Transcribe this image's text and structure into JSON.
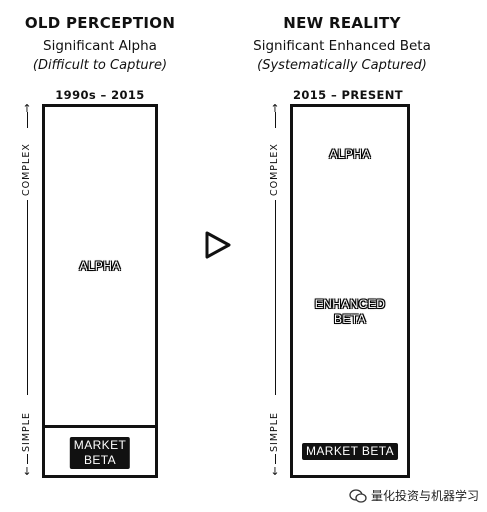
{
  "left": {
    "title": "OLD PERCEPTION",
    "subtitle": "Significant Alpha",
    "note": "(Difficult to Capture)",
    "era": "1990s – 2015",
    "segments": {
      "top": "ALPHA",
      "bottom_line1": "MARKET",
      "bottom_line2": "BETA"
    }
  },
  "right": {
    "title": "NEW REALITY",
    "subtitle": "Significant Enhanced Beta",
    "note": "(Systematically Captured)",
    "era": "2015 – PRESENT",
    "segments": {
      "top": "ALPHA",
      "middle_line1": "ENHANCED",
      "middle_line2": "BETA",
      "bottom": "MARKET BETA"
    }
  },
  "axis": {
    "top": "COMPLEX",
    "bottom": "SIMPLE"
  },
  "footer": {
    "text": "量化投资与机器学习",
    "icon": "wechat-icon"
  },
  "colors": {
    "ink": "#111111",
    "background": "#ffffff"
  }
}
